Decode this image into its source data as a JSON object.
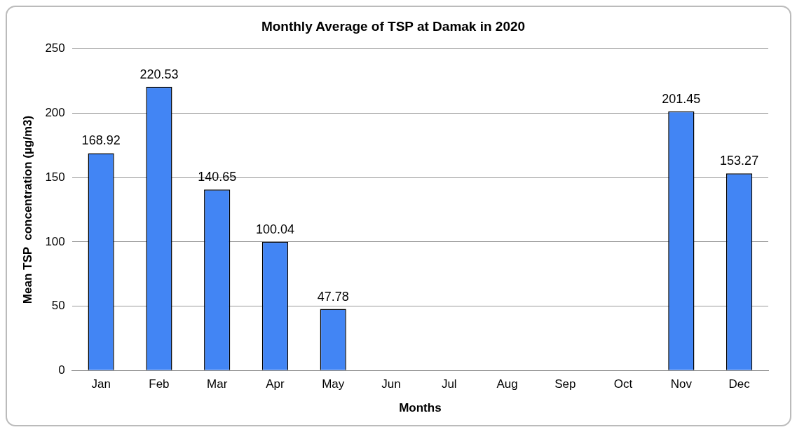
{
  "chart_data": {
    "type": "bar",
    "title": "Monthly Average of TSP at Damak in 2020",
    "xlabel": "Months",
    "ylabel": "Mean TSP  concentration (µg/m3)",
    "categories": [
      "Jan",
      "Feb",
      "Mar",
      "Apr",
      "May",
      "Jun",
      "Jul",
      "Aug",
      "Sep",
      "Oct",
      "Nov",
      "Dec"
    ],
    "values": [
      168.92,
      220.53,
      140.65,
      100.04,
      47.78,
      null,
      null,
      null,
      null,
      null,
      201.45,
      153.27
    ],
    "color": "#4285f4",
    "ylim": [
      0,
      250
    ],
    "yticks": [
      0,
      50,
      100,
      150,
      200,
      250
    ],
    "grid": "y",
    "legend": false,
    "data_labels": true
  }
}
